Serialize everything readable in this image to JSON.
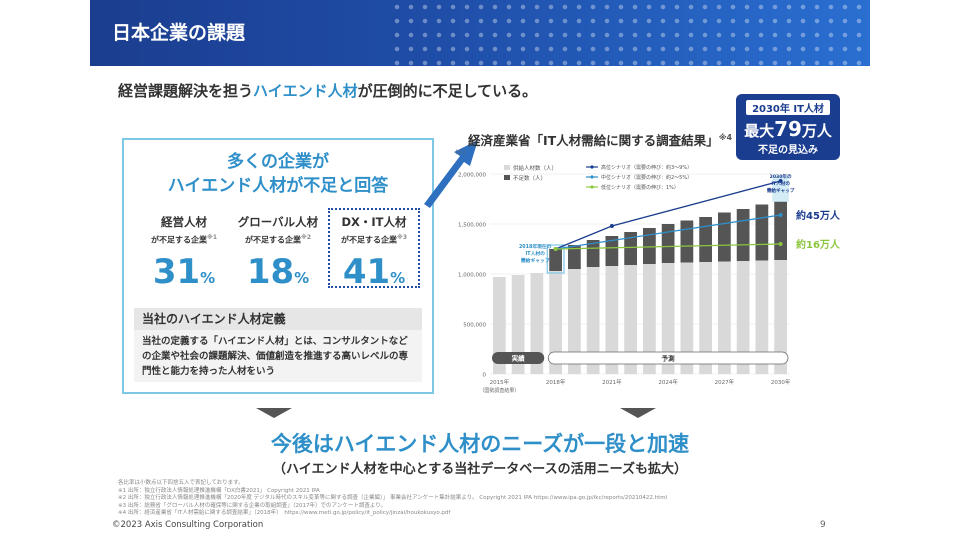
{
  "header": {
    "title": "日本企業の課題"
  },
  "subtitle": {
    "pre": "経営課題解決を担う",
    "highlight": "ハイエンド人材",
    "post": "が圧倒的に不足している。"
  },
  "left_box": {
    "heading_line1": "多くの企業が",
    "heading_line2": "ハイエンド人材が不足と回答",
    "stats": [
      {
        "title": "経営人材",
        "sub": "が不足する企業",
        "note": "※1",
        "value": "31",
        "unit": "%"
      },
      {
        "title": "グローバル人材",
        "sub": "が不足する企業",
        "note": "※2",
        "value": "18",
        "unit": "%"
      },
      {
        "title": "DX・IT人材",
        "sub": "が不足する企業",
        "note": "※3",
        "value": "41",
        "unit": "%"
      }
    ],
    "definition_title": "当社のハイエンド人材定義",
    "definition_text": "当社の定義する「ハイエンド人材」とは、コンサルタントなどの企業や社会の課題解決、価値創造を推進する高いレベルの専門性と能力を持った人材をいう"
  },
  "chart_title": {
    "text": "経済産業省「IT人材需給に関する調査結果」",
    "note": "※4"
  },
  "callout": {
    "line1": "2030年 IT人材",
    "prefix": "最大",
    "number": "79",
    "suffix": "万人",
    "line3": "不足の見込み"
  },
  "chart_data": {
    "type": "bar",
    "ylabel": "（人）",
    "ylim": [
      0,
      2000000
    ],
    "yticks": [
      "0",
      "500,000",
      "1,000,000",
      "1,500,000",
      "2,000,000"
    ],
    "xtick_labels": [
      "2015年",
      "2018年",
      "2021年",
      "2024年",
      "2027年",
      "2030年"
    ],
    "xnote": "（国勢調査結果）",
    "years": [
      2015,
      2016,
      2017,
      2018,
      2019,
      2020,
      2021,
      2022,
      2023,
      2024,
      2025,
      2026,
      2027,
      2028,
      2029,
      2030
    ],
    "legend": [
      "供給人材数（人）",
      "不足数（人）",
      "高位シナリオ（需要の伸び：約3〜9%）",
      "中位シナリオ（需要の伸び：約2〜5%）",
      "低位シナリオ（需要の伸び：1%）"
    ],
    "series": [
      {
        "name": "供給人材数（人）",
        "color": "#d9d9d9",
        "values": [
          970000,
          990000,
          1010000,
          1030000,
          1050000,
          1070000,
          1080000,
          1090000,
          1100000,
          1110000,
          1115000,
          1120000,
          1125000,
          1130000,
          1135000,
          1140000
        ]
      },
      {
        "name": "不足数（人）",
        "color": "#555555",
        "values": [
          0,
          0,
          0,
          220000,
          240000,
          270000,
          300000,
          330000,
          360000,
          390000,
          420000,
          450000,
          490000,
          520000,
          560000,
          590000
        ]
      }
    ],
    "lines": [
      {
        "name": "高位シナリオ",
        "color": "#1b3d8f",
        "x": [
          2018,
          2021,
          2030
        ],
        "values": [
          1250000,
          1480000,
          1930000
        ]
      },
      {
        "name": "中位シナリオ",
        "color": "#2f8fc9",
        "x": [
          2018,
          2030
        ],
        "values": [
          1250000,
          1590000
        ]
      },
      {
        "name": "低位シナリオ",
        "color": "#8cc63f",
        "x": [
          2018,
          2030
        ],
        "values": [
          1250000,
          1300000
        ]
      }
    ],
    "phase_labels": {
      "actual": "実績",
      "forecast": "予測"
    },
    "annotations": {
      "gap2018": [
        "2018年現在の",
        "IT人材の",
        "需給ギャップ"
      ],
      "gap2030": [
        "2030年の",
        "IT人材の",
        "需給ギャップ"
      ],
      "high": "約45万人",
      "low": "約16万人"
    }
  },
  "conclusion": {
    "main": "今後はハイエンド人材のニーズが一段と加速",
    "sub": "（ハイエンド人材を中心とする当社データベースの活用ニーズも拡大）"
  },
  "notes": [
    "各比率は小数点以下四捨五入で表記しております。",
    "※1 出所：独立行政法人情報処理推進機構「DX白書2021」 Copyright 2021 IPA",
    "※2 出所：独立行政法人情報処理推進機構「2020年度 デジタル時代のスキル変革等に関する調査（企業編）」 事業会社アンケート集計結果より。 Copyright 2021 IPA https://www.ipa.go.jp/ikc/reports/20210422.html",
    "※3 出所：総務省「グローバル人材の確保等に関する企業の取組調査」（2017年）でのアンケート調査より。",
    "※4 出所：経済産業省「IT人材需給に関する調査結果」（2018年）　https://www.meti.go.jp/policy/it_policy/jinzai/houkokusyo.pdf"
  ],
  "footer": {
    "copyright": "©2023 Axis Consulting Corporation",
    "page": "9"
  },
  "colors": {
    "accent": "#2f8fc9",
    "navy": "#1b3d8f"
  }
}
